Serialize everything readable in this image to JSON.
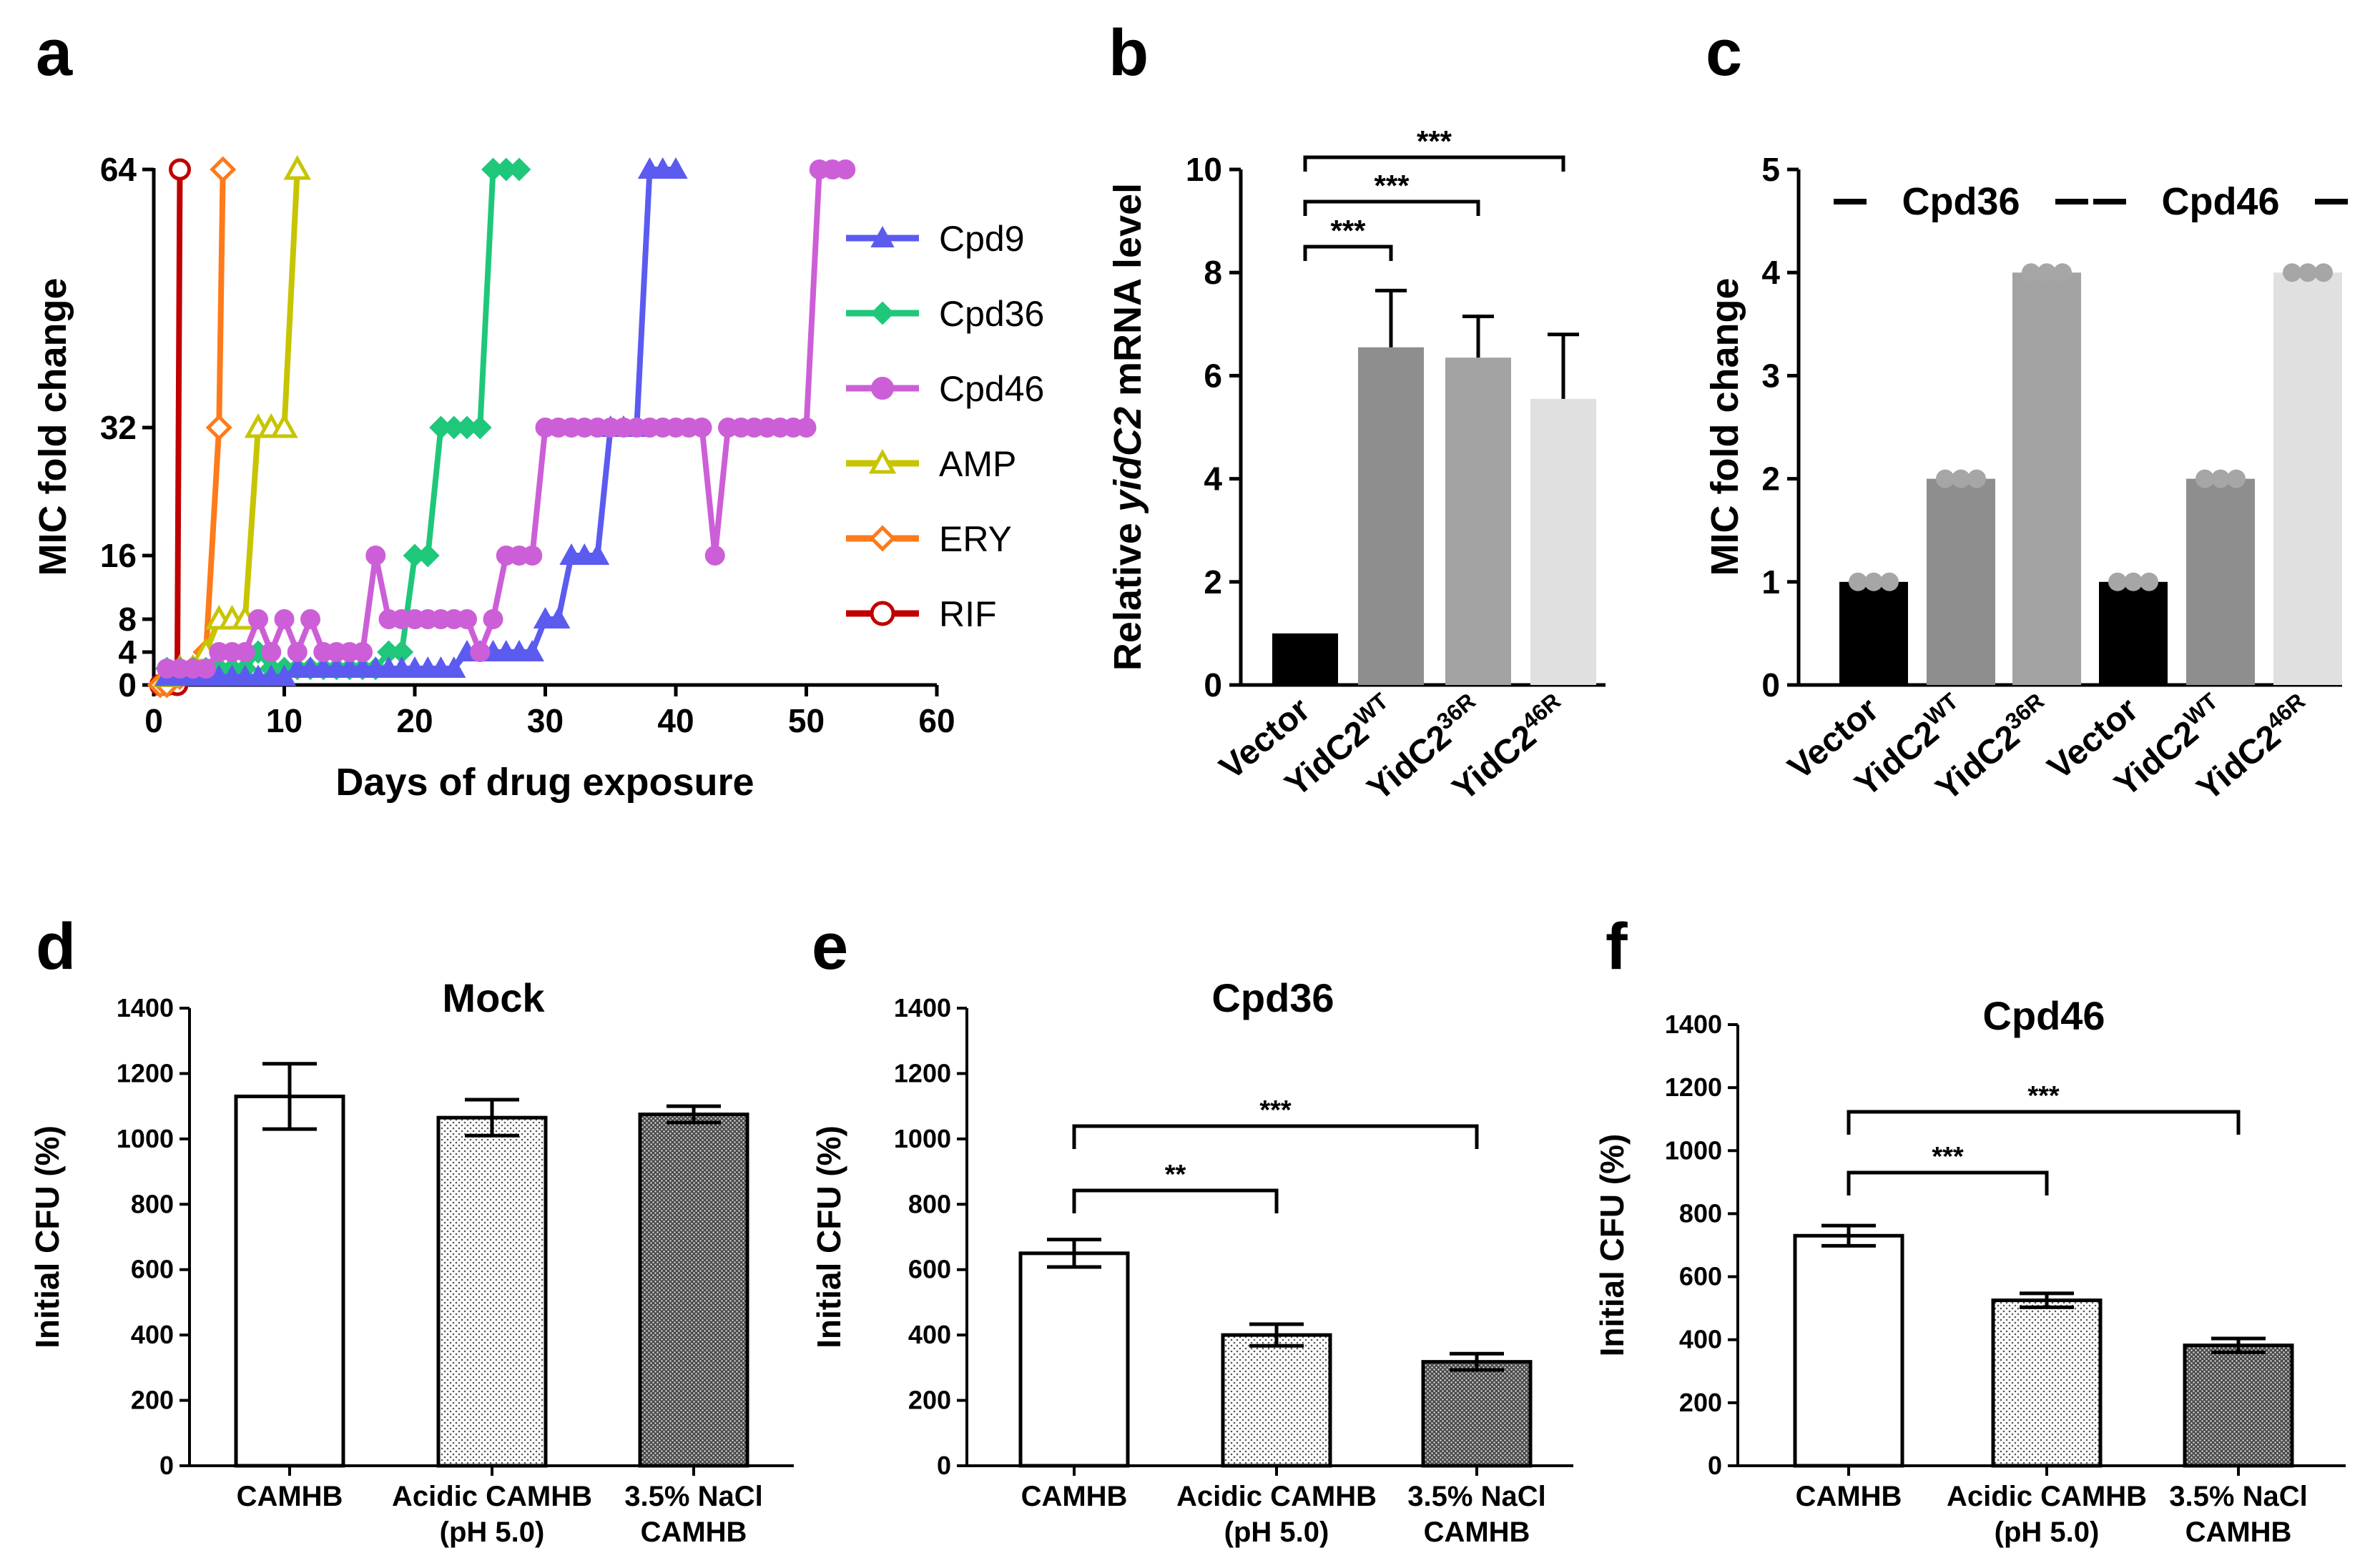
{
  "figure": {
    "panel_letters": [
      "a",
      "b",
      "c",
      "d",
      "e",
      "f"
    ]
  },
  "chart_data": [
    {
      "panel": "a",
      "type": "line",
      "xlabel": "Days of drug exposure",
      "ylabel": "MIC fold change",
      "xlim": [
        0,
        60
      ],
      "ylim": [
        0,
        64
      ],
      "x_ticks": [
        "0",
        "10",
        "20",
        "30",
        "40",
        "50",
        "60"
      ],
      "y_ticks": [
        "0",
        "4",
        "8",
        "16",
        "32",
        "64"
      ],
      "grid": false,
      "legend_position": "right",
      "series": [
        {
          "name": "Cpd9",
          "color": "#5b5bf0",
          "marker": "triangle-filled",
          "x": [
            1,
            2,
            3,
            4,
            5,
            6,
            7,
            8,
            9,
            10,
            11,
            12,
            13,
            14,
            15,
            16,
            17,
            18,
            19,
            20,
            21,
            22,
            23,
            24,
            25,
            26,
            27,
            28,
            29,
            30,
            31,
            32,
            33,
            34,
            35,
            36,
            37,
            38,
            39,
            40
          ],
          "y": [
            1,
            1,
            1,
            1,
            1,
            1,
            1,
            1,
            1,
            1,
            2,
            2,
            2,
            2,
            2,
            2,
            2,
            2,
            2,
            2,
            2,
            2,
            2,
            4,
            4,
            4,
            4,
            4,
            4,
            8,
            8,
            16,
            16,
            16,
            32,
            32,
            32,
            64,
            64,
            64
          ]
        },
        {
          "name": "Cpd36",
          "color": "#1fc77a",
          "marker": "diamond-filled",
          "x": [
            1,
            2,
            3,
            4,
            5,
            6,
            7,
            8,
            9,
            10,
            11,
            12,
            13,
            14,
            15,
            16,
            17,
            18,
            19,
            20,
            21,
            22,
            23,
            24,
            25,
            26,
            27,
            28
          ],
          "y": [
            2,
            2,
            2,
            2,
            2,
            2,
            2,
            4,
            2,
            2,
            2,
            2,
            2,
            2,
            2,
            2,
            2,
            4,
            4,
            16,
            16,
            32,
            32,
            32,
            32,
            64,
            64,
            64
          ]
        },
        {
          "name": "Cpd46",
          "color": "#cc5fd7",
          "marker": "circle-filled",
          "x": [
            1,
            2,
            3,
            4,
            5,
            6,
            7,
            8,
            9,
            10,
            11,
            12,
            13,
            14,
            15,
            16,
            17,
            18,
            19,
            20,
            21,
            22,
            23,
            24,
            25,
            26,
            27,
            28,
            29,
            30,
            31,
            32,
            33,
            34,
            35,
            36,
            37,
            38,
            39,
            40,
            41,
            42,
            43,
            44,
            45,
            46,
            47,
            48,
            49,
            50,
            51,
            52,
            53
          ],
          "y": [
            2,
            2,
            2,
            2,
            4,
            4,
            4,
            8,
            4,
            8,
            4,
            8,
            4,
            4,
            4,
            4,
            16,
            8,
            8,
            8,
            8,
            8,
            8,
            8,
            4,
            8,
            16,
            16,
            16,
            32,
            32,
            32,
            32,
            32,
            32,
            32,
            32,
            32,
            32,
            32,
            32,
            32,
            16,
            32,
            32,
            32,
            32,
            32,
            32,
            32,
            64,
            64,
            64
          ]
        },
        {
          "name": "AMP",
          "color": "#c7c400",
          "marker": "triangle-open",
          "x": [
            1,
            2,
            3,
            4,
            5,
            6,
            7,
            8,
            9,
            10,
            11
          ],
          "y": [
            1,
            2,
            2,
            4,
            8,
            8,
            8,
            32,
            32,
            32,
            64
          ]
        },
        {
          "name": "ERY",
          "color": "#ff7a1a",
          "marker": "diamond-open",
          "x": [
            0.5,
            1,
            2,
            3,
            4,
            5,
            5.3
          ],
          "y": [
            0,
            0,
            1,
            2,
            4,
            32,
            64
          ]
        },
        {
          "name": "RIF",
          "color": "#c00000",
          "marker": "circle-open",
          "x": [
            0.5,
            1,
            1.8,
            2
          ],
          "y": [
            0,
            0,
            0,
            64
          ]
        }
      ]
    },
    {
      "panel": "b",
      "type": "bar",
      "ylabel_pre": "Relative ",
      "ylabel_italic": "yidC2",
      "ylabel_post": " mRNA level",
      "ylim": [
        0,
        10
      ],
      "y_ticks": [
        "0",
        "2",
        "4",
        "6",
        "8",
        "10"
      ],
      "categories": [
        {
          "base": "Vector",
          "sup": ""
        },
        {
          "base": "YidC2",
          "sup": "WT"
        },
        {
          "base": "YidC2",
          "sup": "36R"
        },
        {
          "base": "YidC2",
          "sup": "46R"
        }
      ],
      "values": [
        1.0,
        6.55,
        6.35,
        5.55
      ],
      "errors": [
        0,
        1.1,
        0.8,
        1.25
      ],
      "colors": [
        "#000000",
        "#8e8e8e",
        "#a3a3a3",
        "#e0e0e0"
      ],
      "significance": [
        {
          "from": 0,
          "to": 1,
          "label": "***"
        },
        {
          "from": 0,
          "to": 2,
          "label": "***"
        },
        {
          "from": 0,
          "to": 3,
          "label": "***"
        }
      ]
    },
    {
      "panel": "c",
      "type": "bar",
      "ylabel": "MIC fold change",
      "ylim": [
        0,
        5
      ],
      "y_ticks": [
        "0",
        "1",
        "2",
        "3",
        "4",
        "5"
      ],
      "groups": [
        "Cpd36",
        "Cpd46"
      ],
      "categories": [
        {
          "base": "Vector",
          "sup": ""
        },
        {
          "base": "YidC2",
          "sup": "WT"
        },
        {
          "base": "YidC2",
          "sup": "36R"
        },
        {
          "base": "Vector",
          "sup": ""
        },
        {
          "base": "YidC2",
          "sup": "WT"
        },
        {
          "base": "YidC2",
          "sup": "46R"
        }
      ],
      "values": [
        1,
        2,
        4,
        1,
        2,
        4
      ],
      "colors": [
        "#000000",
        "#8e8e8e",
        "#a3a3a3",
        "#000000",
        "#8e8e8e",
        "#e0e0e0"
      ],
      "point_color": "#a6a6a6"
    },
    {
      "panel": "d",
      "type": "bar",
      "title": "Mock",
      "ylabel": "Initial CFU (%)",
      "ylim": [
        0,
        1400
      ],
      "y_ticks": [
        "0",
        "200",
        "400",
        "600",
        "800",
        "1000",
        "1200",
        "1400"
      ],
      "categories": [
        {
          "lines": [
            "CAMHB"
          ]
        },
        {
          "lines": [
            "Acidic CAMHB",
            "(pH 5.0)"
          ]
        },
        {
          "lines": [
            "3.5% NaCl",
            "CAMHB"
          ]
        }
      ],
      "values": [
        1130,
        1065,
        1075
      ],
      "errors": [
        100,
        55,
        25
      ],
      "fills": [
        "white",
        "light",
        "dark"
      ],
      "significance": []
    },
    {
      "panel": "e",
      "type": "bar",
      "title": "Cpd36",
      "ylabel": "Initial CFU (%)",
      "ylim": [
        0,
        1400
      ],
      "y_ticks": [
        "0",
        "200",
        "400",
        "600",
        "800",
        "1000",
        "1200",
        "1400"
      ],
      "categories": [
        {
          "lines": [
            "CAMHB"
          ]
        },
        {
          "lines": [
            "Acidic CAMHB",
            "(pH 5.0)"
          ]
        },
        {
          "lines": [
            "3.5% NaCl",
            "CAMHB"
          ]
        }
      ],
      "values": [
        650,
        400,
        318
      ],
      "errors": [
        42,
        33,
        25
      ],
      "fills": [
        "white",
        "light",
        "dark"
      ],
      "significance": [
        {
          "from": 0,
          "to": 1,
          "label": "**"
        },
        {
          "from": 0,
          "to": 2,
          "label": "***"
        }
      ]
    },
    {
      "panel": "f",
      "type": "bar",
      "title": "Cpd46",
      "ylabel": "Initial CFU (%)",
      "ylim": [
        0,
        1400
      ],
      "y_ticks": [
        "0",
        "200",
        "400",
        "600",
        "800",
        "1000",
        "1200",
        "1400"
      ],
      "categories": [
        {
          "lines": [
            "CAMHB"
          ]
        },
        {
          "lines": [
            "Acidic CAMHB",
            "(pH 5.0)"
          ]
        },
        {
          "lines": [
            "3.5% NaCl",
            "CAMHB"
          ]
        }
      ],
      "values": [
        730,
        525,
        382
      ],
      "errors": [
        32,
        22,
        22
      ],
      "fills": [
        "white",
        "light",
        "dark"
      ],
      "significance": [
        {
          "from": 0,
          "to": 1,
          "label": "***"
        },
        {
          "from": 0,
          "to": 2,
          "label": "***"
        }
      ]
    }
  ]
}
